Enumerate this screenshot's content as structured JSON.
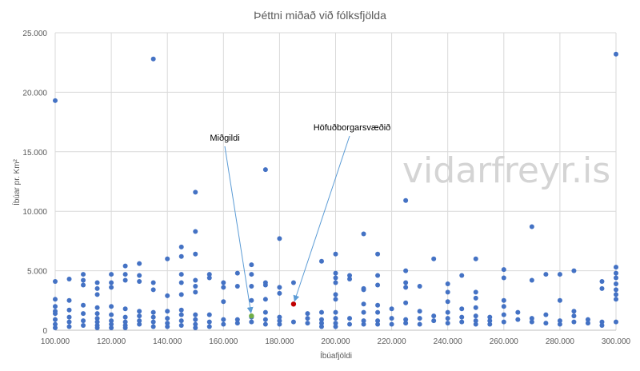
{
  "chart_data": {
    "type": "scatter",
    "title": "Þéttni miðað við fólksfjölda",
    "xlabel": "Íbúafjöldi",
    "ylabel": "Íbúar pr. Km²",
    "xlim": [
      100000,
      300000
    ],
    "ylim": [
      0,
      25000
    ],
    "x_ticks": [
      100000,
      120000,
      140000,
      160000,
      180000,
      200000,
      220000,
      240000,
      260000,
      280000,
      300000
    ],
    "y_ticks": [
      0,
      5000,
      10000,
      15000,
      20000,
      25000
    ],
    "x_tick_labels": [
      "100.000",
      "120.000",
      "140.000",
      "160.000",
      "180.000",
      "200.000",
      "220.000",
      "240.000",
      "260.000",
      "280.000",
      "300.000"
    ],
    "y_tick_labels": [
      "0",
      "5.000",
      "10.000",
      "15.000",
      "20.000",
      "25.000"
    ],
    "grid": true,
    "colors": {
      "points": "#4472c4",
      "median": "#70ad47",
      "capital": "#c00000",
      "arrow": "#5b9bd5"
    },
    "watermark": "vidarfreyr.is",
    "annotations": [
      {
        "text": "Miðgildi",
        "x": 170000,
        "y": 1200
      },
      {
        "text": "Höfuðborgarsvæðið",
        "x": 185000,
        "y": 2200
      }
    ],
    "highlight": [
      {
        "x": 170000,
        "y": 1200,
        "role": "median"
      },
      {
        "x": 185000,
        "y": 2200,
        "role": "capital"
      }
    ],
    "points": [
      [
        100000,
        19300
      ],
      [
        100000,
        4100
      ],
      [
        100000,
        2600
      ],
      [
        100000,
        2000
      ],
      [
        100000,
        1600
      ],
      [
        100000,
        1400
      ],
      [
        100000,
        900
      ],
      [
        100000,
        500
      ],
      [
        100000,
        200
      ],
      [
        105000,
        4300
      ],
      [
        105000,
        2500
      ],
      [
        105000,
        1700
      ],
      [
        105000,
        1100
      ],
      [
        105000,
        700
      ],
      [
        105000,
        300
      ],
      [
        110000,
        4700
      ],
      [
        110000,
        4200
      ],
      [
        110000,
        3800
      ],
      [
        110000,
        2100
      ],
      [
        110000,
        1400
      ],
      [
        110000,
        800
      ],
      [
        110000,
        400
      ],
      [
        115000,
        4000
      ],
      [
        115000,
        3500
      ],
      [
        115000,
        3000
      ],
      [
        115000,
        1900
      ],
      [
        115000,
        1400
      ],
      [
        115000,
        1000
      ],
      [
        115000,
        700
      ],
      [
        115000,
        400
      ],
      [
        115000,
        200
      ],
      [
        120000,
        4700
      ],
      [
        120000,
        4000
      ],
      [
        120000,
        3600
      ],
      [
        120000,
        2000
      ],
      [
        120000,
        1300
      ],
      [
        120000,
        800
      ],
      [
        120000,
        500
      ],
      [
        120000,
        200
      ],
      [
        125000,
        5400
      ],
      [
        125000,
        4700
      ],
      [
        125000,
        4200
      ],
      [
        125000,
        1800
      ],
      [
        125000,
        1100
      ],
      [
        125000,
        700
      ],
      [
        125000,
        400
      ],
      [
        125000,
        200
      ],
      [
        130000,
        5600
      ],
      [
        130000,
        4600
      ],
      [
        130000,
        4100
      ],
      [
        130000,
        1600
      ],
      [
        130000,
        1200
      ],
      [
        130000,
        800
      ],
      [
        130000,
        500
      ],
      [
        135000,
        22800
      ],
      [
        135000,
        4000
      ],
      [
        135000,
        3400
      ],
      [
        135000,
        1500
      ],
      [
        135000,
        1100
      ],
      [
        135000,
        700
      ],
      [
        135000,
        300
      ],
      [
        140000,
        6000
      ],
      [
        140000,
        2900
      ],
      [
        140000,
        1600
      ],
      [
        140000,
        1000
      ],
      [
        140000,
        600
      ],
      [
        140000,
        300
      ],
      [
        145000,
        7000
      ],
      [
        145000,
        6200
      ],
      [
        145000,
        4700
      ],
      [
        145000,
        4000
      ],
      [
        145000,
        3000
      ],
      [
        145000,
        1700
      ],
      [
        145000,
        1300
      ],
      [
        145000,
        800
      ],
      [
        145000,
        400
      ],
      [
        150000,
        11600
      ],
      [
        150000,
        8300
      ],
      [
        150000,
        6400
      ],
      [
        150000,
        4200
      ],
      [
        150000,
        3700
      ],
      [
        150000,
        3200
      ],
      [
        150000,
        1300
      ],
      [
        150000,
        900
      ],
      [
        150000,
        500
      ],
      [
        150000,
        200
      ],
      [
        155000,
        4700
      ],
      [
        155000,
        4400
      ],
      [
        155000,
        1300
      ],
      [
        155000,
        700
      ],
      [
        155000,
        300
      ],
      [
        160000,
        4000
      ],
      [
        160000,
        3600
      ],
      [
        160000,
        2400
      ],
      [
        160000,
        900
      ],
      [
        160000,
        500
      ],
      [
        165000,
        4800
      ],
      [
        165000,
        3700
      ],
      [
        165000,
        900
      ],
      [
        165000,
        600
      ],
      [
        170000,
        5500
      ],
      [
        170000,
        4700
      ],
      [
        170000,
        3700
      ],
      [
        170000,
        2500
      ],
      [
        170000,
        1100
      ],
      [
        170000,
        700
      ],
      [
        175000,
        13500
      ],
      [
        175000,
        4000
      ],
      [
        175000,
        3800
      ],
      [
        175000,
        2600
      ],
      [
        175000,
        1500
      ],
      [
        175000,
        900
      ],
      [
        175000,
        500
      ],
      [
        180000,
        7700
      ],
      [
        180000,
        3600
      ],
      [
        180000,
        3100
      ],
      [
        180000,
        1100
      ],
      [
        180000,
        800
      ],
      [
        180000,
        500
      ],
      [
        185000,
        4000
      ],
      [
        185000,
        700
      ],
      [
        190000,
        1400
      ],
      [
        190000,
        1000
      ],
      [
        190000,
        600
      ],
      [
        195000,
        5800
      ],
      [
        195000,
        1500
      ],
      [
        195000,
        900
      ],
      [
        195000,
        600
      ],
      [
        195000,
        300
      ],
      [
        200000,
        6400
      ],
      [
        200000,
        4800
      ],
      [
        200000,
        4400
      ],
      [
        200000,
        4000
      ],
      [
        200000,
        3000
      ],
      [
        200000,
        2600
      ],
      [
        200000,
        1500
      ],
      [
        200000,
        1000
      ],
      [
        200000,
        600
      ],
      [
        200000,
        300
      ],
      [
        205000,
        4600
      ],
      [
        205000,
        4300
      ],
      [
        205000,
        1000
      ],
      [
        205000,
        500
      ],
      [
        210000,
        8100
      ],
      [
        210000,
        3500
      ],
      [
        210000,
        3400
      ],
      [
        210000,
        2200
      ],
      [
        210000,
        1500
      ],
      [
        210000,
        800
      ],
      [
        210000,
        500
      ],
      [
        215000,
        6400
      ],
      [
        215000,
        4600
      ],
      [
        215000,
        3800
      ],
      [
        215000,
        2100
      ],
      [
        215000,
        1500
      ],
      [
        215000,
        800
      ],
      [
        215000,
        500
      ],
      [
        220000,
        1800
      ],
      [
        220000,
        1000
      ],
      [
        220000,
        500
      ],
      [
        225000,
        10900
      ],
      [
        225000,
        5000
      ],
      [
        225000,
        4000
      ],
      [
        225000,
        3600
      ],
      [
        225000,
        2300
      ],
      [
        225000,
        900
      ],
      [
        225000,
        600
      ],
      [
        230000,
        3700
      ],
      [
        230000,
        1600
      ],
      [
        230000,
        1000
      ],
      [
        230000,
        500
      ],
      [
        235000,
        6000
      ],
      [
        235000,
        1200
      ],
      [
        235000,
        800
      ],
      [
        240000,
        3900
      ],
      [
        240000,
        3200
      ],
      [
        240000,
        2400
      ],
      [
        240000,
        1500
      ],
      [
        240000,
        1000
      ],
      [
        240000,
        600
      ],
      [
        245000,
        4600
      ],
      [
        245000,
        1800
      ],
      [
        245000,
        1100
      ],
      [
        245000,
        700
      ],
      [
        250000,
        6000
      ],
      [
        250000,
        3200
      ],
      [
        250000,
        2700
      ],
      [
        250000,
        1900
      ],
      [
        250000,
        1200
      ],
      [
        250000,
        800
      ],
      [
        250000,
        500
      ],
      [
        255000,
        1100
      ],
      [
        255000,
        800
      ],
      [
        255000,
        500
      ],
      [
        260000,
        5100
      ],
      [
        260000,
        4400
      ],
      [
        260000,
        2500
      ],
      [
        260000,
        2000
      ],
      [
        260000,
        1300
      ],
      [
        260000,
        700
      ],
      [
        265000,
        1500
      ],
      [
        265000,
        900
      ],
      [
        270000,
        8700
      ],
      [
        270000,
        4200
      ],
      [
        270000,
        1000
      ],
      [
        270000,
        700
      ],
      [
        275000,
        4700
      ],
      [
        275000,
        1300
      ],
      [
        275000,
        600
      ],
      [
        280000,
        4700
      ],
      [
        280000,
        2500
      ],
      [
        280000,
        800
      ],
      [
        280000,
        500
      ],
      [
        285000,
        5000
      ],
      [
        285000,
        1600
      ],
      [
        285000,
        1200
      ],
      [
        285000,
        700
      ],
      [
        290000,
        900
      ],
      [
        290000,
        600
      ],
      [
        295000,
        4100
      ],
      [
        295000,
        3500
      ],
      [
        295000,
        700
      ],
      [
        295000,
        400
      ],
      [
        300000,
        23200
      ],
      [
        300000,
        5300
      ],
      [
        300000,
        4800
      ],
      [
        300000,
        4400
      ],
      [
        300000,
        3900
      ],
      [
        300000,
        3400
      ],
      [
        300000,
        3000
      ],
      [
        300000,
        2600
      ],
      [
        300000,
        700
      ]
    ]
  }
}
